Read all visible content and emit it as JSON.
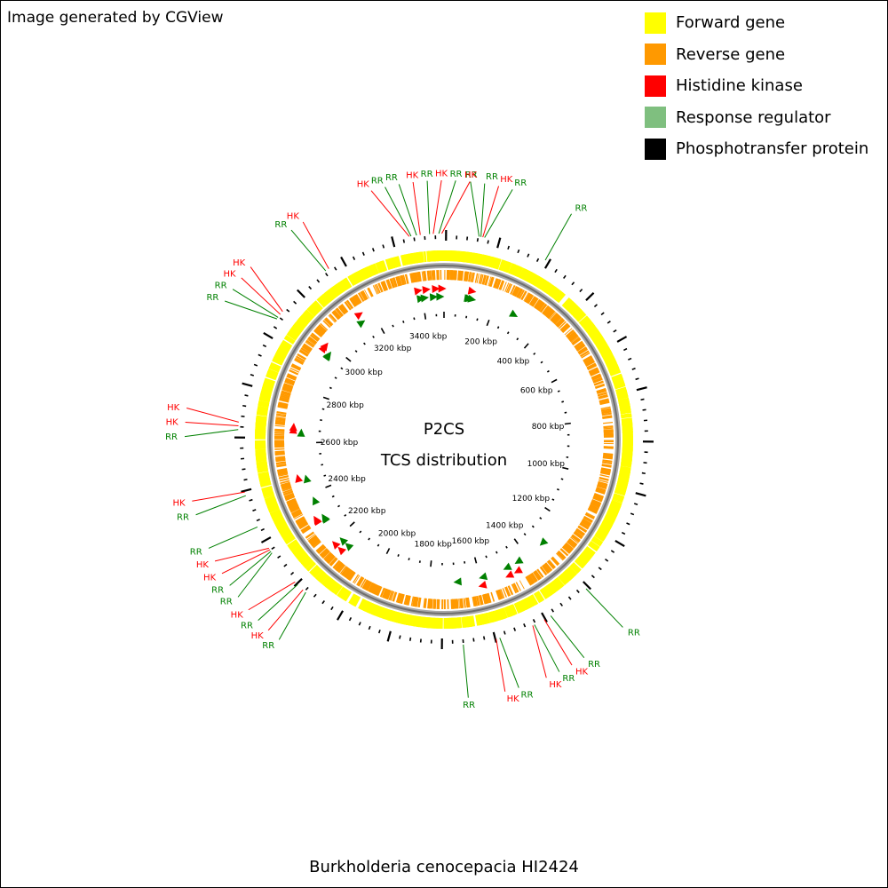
{
  "credit": "Image generated by CGView",
  "organism": "Burkholderia cenocepacia HI2424",
  "center": {
    "line1": "P2CS",
    "line2": "TCS distribution"
  },
  "legend": [
    {
      "label": "Forward gene",
      "color": "#ffff00"
    },
    {
      "label": "Reverse gene",
      "color": "#ff9900"
    },
    {
      "label": "Histidine kinase",
      "color": "#ff0000"
    },
    {
      "label": "Response regulator",
      "color": "#7fbf7f"
    },
    {
      "label": "Phosphotransfer protein",
      "color": "#000000"
    }
  ],
  "colors": {
    "forward": "#ffff00",
    "reverse": "#ff9900",
    "hk": "#ff0000",
    "rr": "#008000",
    "backbone": "#808080",
    "ticks": "#000000"
  },
  "chart_data": {
    "type": "circular-genome-map",
    "tick_labels": [
      "200 kbp",
      "400 kbp",
      "600 kbp",
      "800 kbp",
      "1000 kbp",
      "1200 kbp",
      "1400 kbp",
      "1600 kbp",
      "1800 kbp",
      "2000 kbp",
      "2200 kbp",
      "2400 kbp",
      "2600 kbp",
      "2800 kbp",
      "3000 kbp",
      "3200 kbp",
      "3400 kbp"
    ],
    "tick_values_kbp": [
      200,
      400,
      600,
      800,
      1000,
      1200,
      1400,
      1600,
      1800,
      2000,
      2200,
      2400,
      2600,
      2800,
      3000,
      3200,
      3400
    ],
    "sequence_length_kbp": 3484,
    "features": [
      {
        "type": "RR",
        "pos_kbp": 95
      },
      {
        "type": "RR",
        "pos_kbp": 100
      },
      {
        "type": "HK",
        "pos_kbp": 105
      },
      {
        "type": "RR",
        "pos_kbp": 110
      },
      {
        "type": "RR",
        "pos_kbp": 285
      },
      {
        "type": "RR",
        "pos_kbp": 1320
      },
      {
        "type": "RR",
        "pos_kbp": 1440
      },
      {
        "type": "HK",
        "pos_kbp": 1460
      },
      {
        "type": "RR",
        "pos_kbp": 1490
      },
      {
        "type": "HK",
        "pos_kbp": 1495
      },
      {
        "type": "RR",
        "pos_kbp": 1590
      },
      {
        "type": "HK",
        "pos_kbp": 1600
      },
      {
        "type": "RR",
        "pos_kbp": 1690
      },
      {
        "type": "RR",
        "pos_kbp": 2150
      },
      {
        "type": "HK",
        "pos_kbp": 2160
      },
      {
        "type": "RR",
        "pos_kbp": 2180
      },
      {
        "type": "HK",
        "pos_kbp": 2190
      },
      {
        "type": "RR",
        "pos_kbp": 2290
      },
      {
        "type": "RR",
        "pos_kbp": 2295
      },
      {
        "type": "HK",
        "pos_kbp": 2300
      },
      {
        "type": "HK",
        "pos_kbp": 2305
      },
      {
        "type": "RR",
        "pos_kbp": 2370
      },
      {
        "type": "RR",
        "pos_kbp": 2460
      },
      {
        "type": "HK",
        "pos_kbp": 2470
      },
      {
        "type": "RR",
        "pos_kbp": 2640
      },
      {
        "type": "HK",
        "pos_kbp": 2650
      },
      {
        "type": "HK",
        "pos_kbp": 2660
      },
      {
        "type": "RR",
        "pos_kbp": 2960
      },
      {
        "type": "RR",
        "pos_kbp": 2965
      },
      {
        "type": "HK",
        "pos_kbp": 2975
      },
      {
        "type": "HK",
        "pos_kbp": 2985
      },
      {
        "type": "RR",
        "pos_kbp": 3145
      },
      {
        "type": "HK",
        "pos_kbp": 3155
      },
      {
        "type": "HK",
        "pos_kbp": 3390
      },
      {
        "type": "RR",
        "pos_kbp": 3395
      },
      {
        "type": "RR",
        "pos_kbp": 3410
      },
      {
        "type": "HK",
        "pos_kbp": 3420
      },
      {
        "type": "RR",
        "pos_kbp": 3445
      },
      {
        "type": "HK",
        "pos_kbp": 3455
      },
      {
        "type": "RR",
        "pos_kbp": 3470
      },
      {
        "type": "HK",
        "pos_kbp": 3478
      }
    ]
  }
}
